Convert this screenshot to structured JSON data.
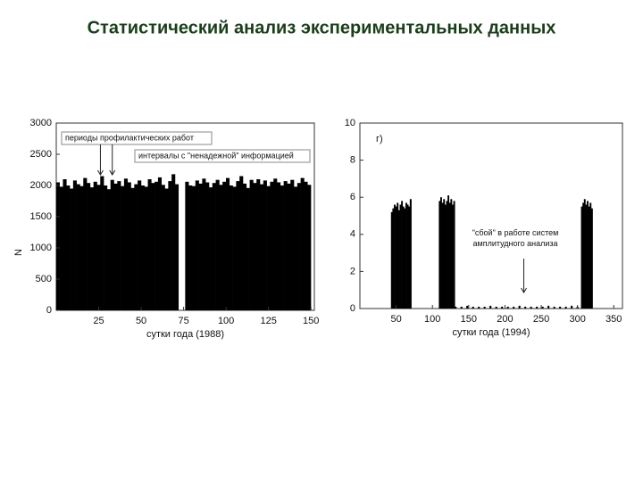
{
  "title": "Статистический анализ экспериментальных данных",
  "chart_data": [
    {
      "type": "bar",
      "xlabel": "сутки года (1988)",
      "ylabel": "N",
      "annotations": [
        "периоды профилактических работ",
        "интервалы с \"ненадежной\" информацией"
      ],
      "color": "#000000",
      "x": [
        1,
        3,
        5,
        7,
        9,
        11,
        13,
        15,
        17,
        19,
        21,
        23,
        25,
        27,
        29,
        31,
        33,
        35,
        37,
        39,
        41,
        43,
        45,
        47,
        49,
        51,
        53,
        55,
        57,
        59,
        61,
        63,
        65,
        67,
        69,
        71,
        73,
        75,
        77,
        79,
        81,
        83,
        85,
        87,
        89,
        91,
        93,
        95,
        97,
        99,
        101,
        103,
        105,
        107,
        109,
        111,
        113,
        115,
        117,
        119,
        121,
        123,
        125,
        127,
        129,
        131,
        133,
        135,
        137,
        139,
        141,
        143,
        145,
        147,
        149
      ],
      "values": [
        2050,
        1980,
        2100,
        2000,
        1950,
        2080,
        2020,
        1990,
        2120,
        2040,
        1970,
        2060,
        2010,
        2150,
        2000,
        1940,
        2090,
        2030,
        2070,
        1990,
        2110,
        2050,
        1960,
        2020,
        2080,
        2000,
        1980,
        2100,
        2040,
        2060,
        2130,
        2010,
        1950,
        2070,
        2180,
        2020,
        0,
        0,
        2060,
        2000,
        1990,
        2080,
        2030,
        2110,
        2050,
        1970,
        2040,
        2090,
        2010,
        2060,
        2120,
        2000,
        1980,
        2070,
        2150,
        2030,
        1960,
        2090,
        2040,
        2100,
        2020,
        2080,
        1990,
        2060,
        2110,
        2050,
        2000,
        2070,
        2030,
        2090,
        1980,
        2040,
        2120,
        2060,
        2010
      ],
      "xlim": [
        0,
        152
      ],
      "xticks": [
        25,
        50,
        75,
        100,
        125,
        150
      ],
      "ylim": [
        0,
        3000
      ],
      "yticks": [
        0,
        500,
        1000,
        1500,
        2000,
        2500,
        3000
      ]
    },
    {
      "type": "bar",
      "xlabel": "сутки года (1994)",
      "panel_label": "г)",
      "annotations": [
        "\"сбой\" в работе систем амплитудного анализа"
      ],
      "color": "#000000",
      "x": [
        44,
        46,
        48,
        50,
        52,
        54,
        56,
        58,
        60,
        62,
        64,
        66,
        68,
        70,
        110,
        112,
        114,
        116,
        118,
        120,
        122,
        124,
        126,
        128,
        130,
        132,
        140,
        148,
        156,
        164,
        172,
        180,
        188,
        196,
        204,
        212,
        220,
        228,
        236,
        244,
        252,
        260,
        268,
        276,
        284,
        292,
        300,
        306,
        308,
        310,
        312,
        314,
        316,
        318,
        320
      ],
      "values": [
        5.2,
        5.4,
        5.6,
        5.5,
        5.7,
        5.3,
        5.6,
        5.8,
        5.5,
        5.4,
        5.7,
        5.6,
        5.5,
        5.9,
        5.8,
        6.0,
        5.7,
        5.9,
        5.6,
        5.8,
        6.1,
        5.7,
        5.9,
        5.6,
        5.8,
        0.1,
        0.1,
        0.15,
        0.1,
        0.1,
        0.1,
        0.15,
        0.1,
        0.1,
        0.1,
        0.1,
        0.15,
        0.1,
        0.1,
        0.1,
        0.1,
        0.15,
        0.1,
        0.1,
        0.1,
        0.15,
        0.1,
        5.5,
        5.7,
        5.9,
        5.6,
        5.8,
        5.5,
        5.7,
        5.4
      ],
      "xlim": [
        0,
        362
      ],
      "xticks": [
        50,
        100,
        150,
        200,
        250,
        300,
        350
      ],
      "ylim": [
        0,
        10
      ],
      "yticks": [
        0,
        2,
        4,
        6,
        8,
        10
      ]
    }
  ]
}
